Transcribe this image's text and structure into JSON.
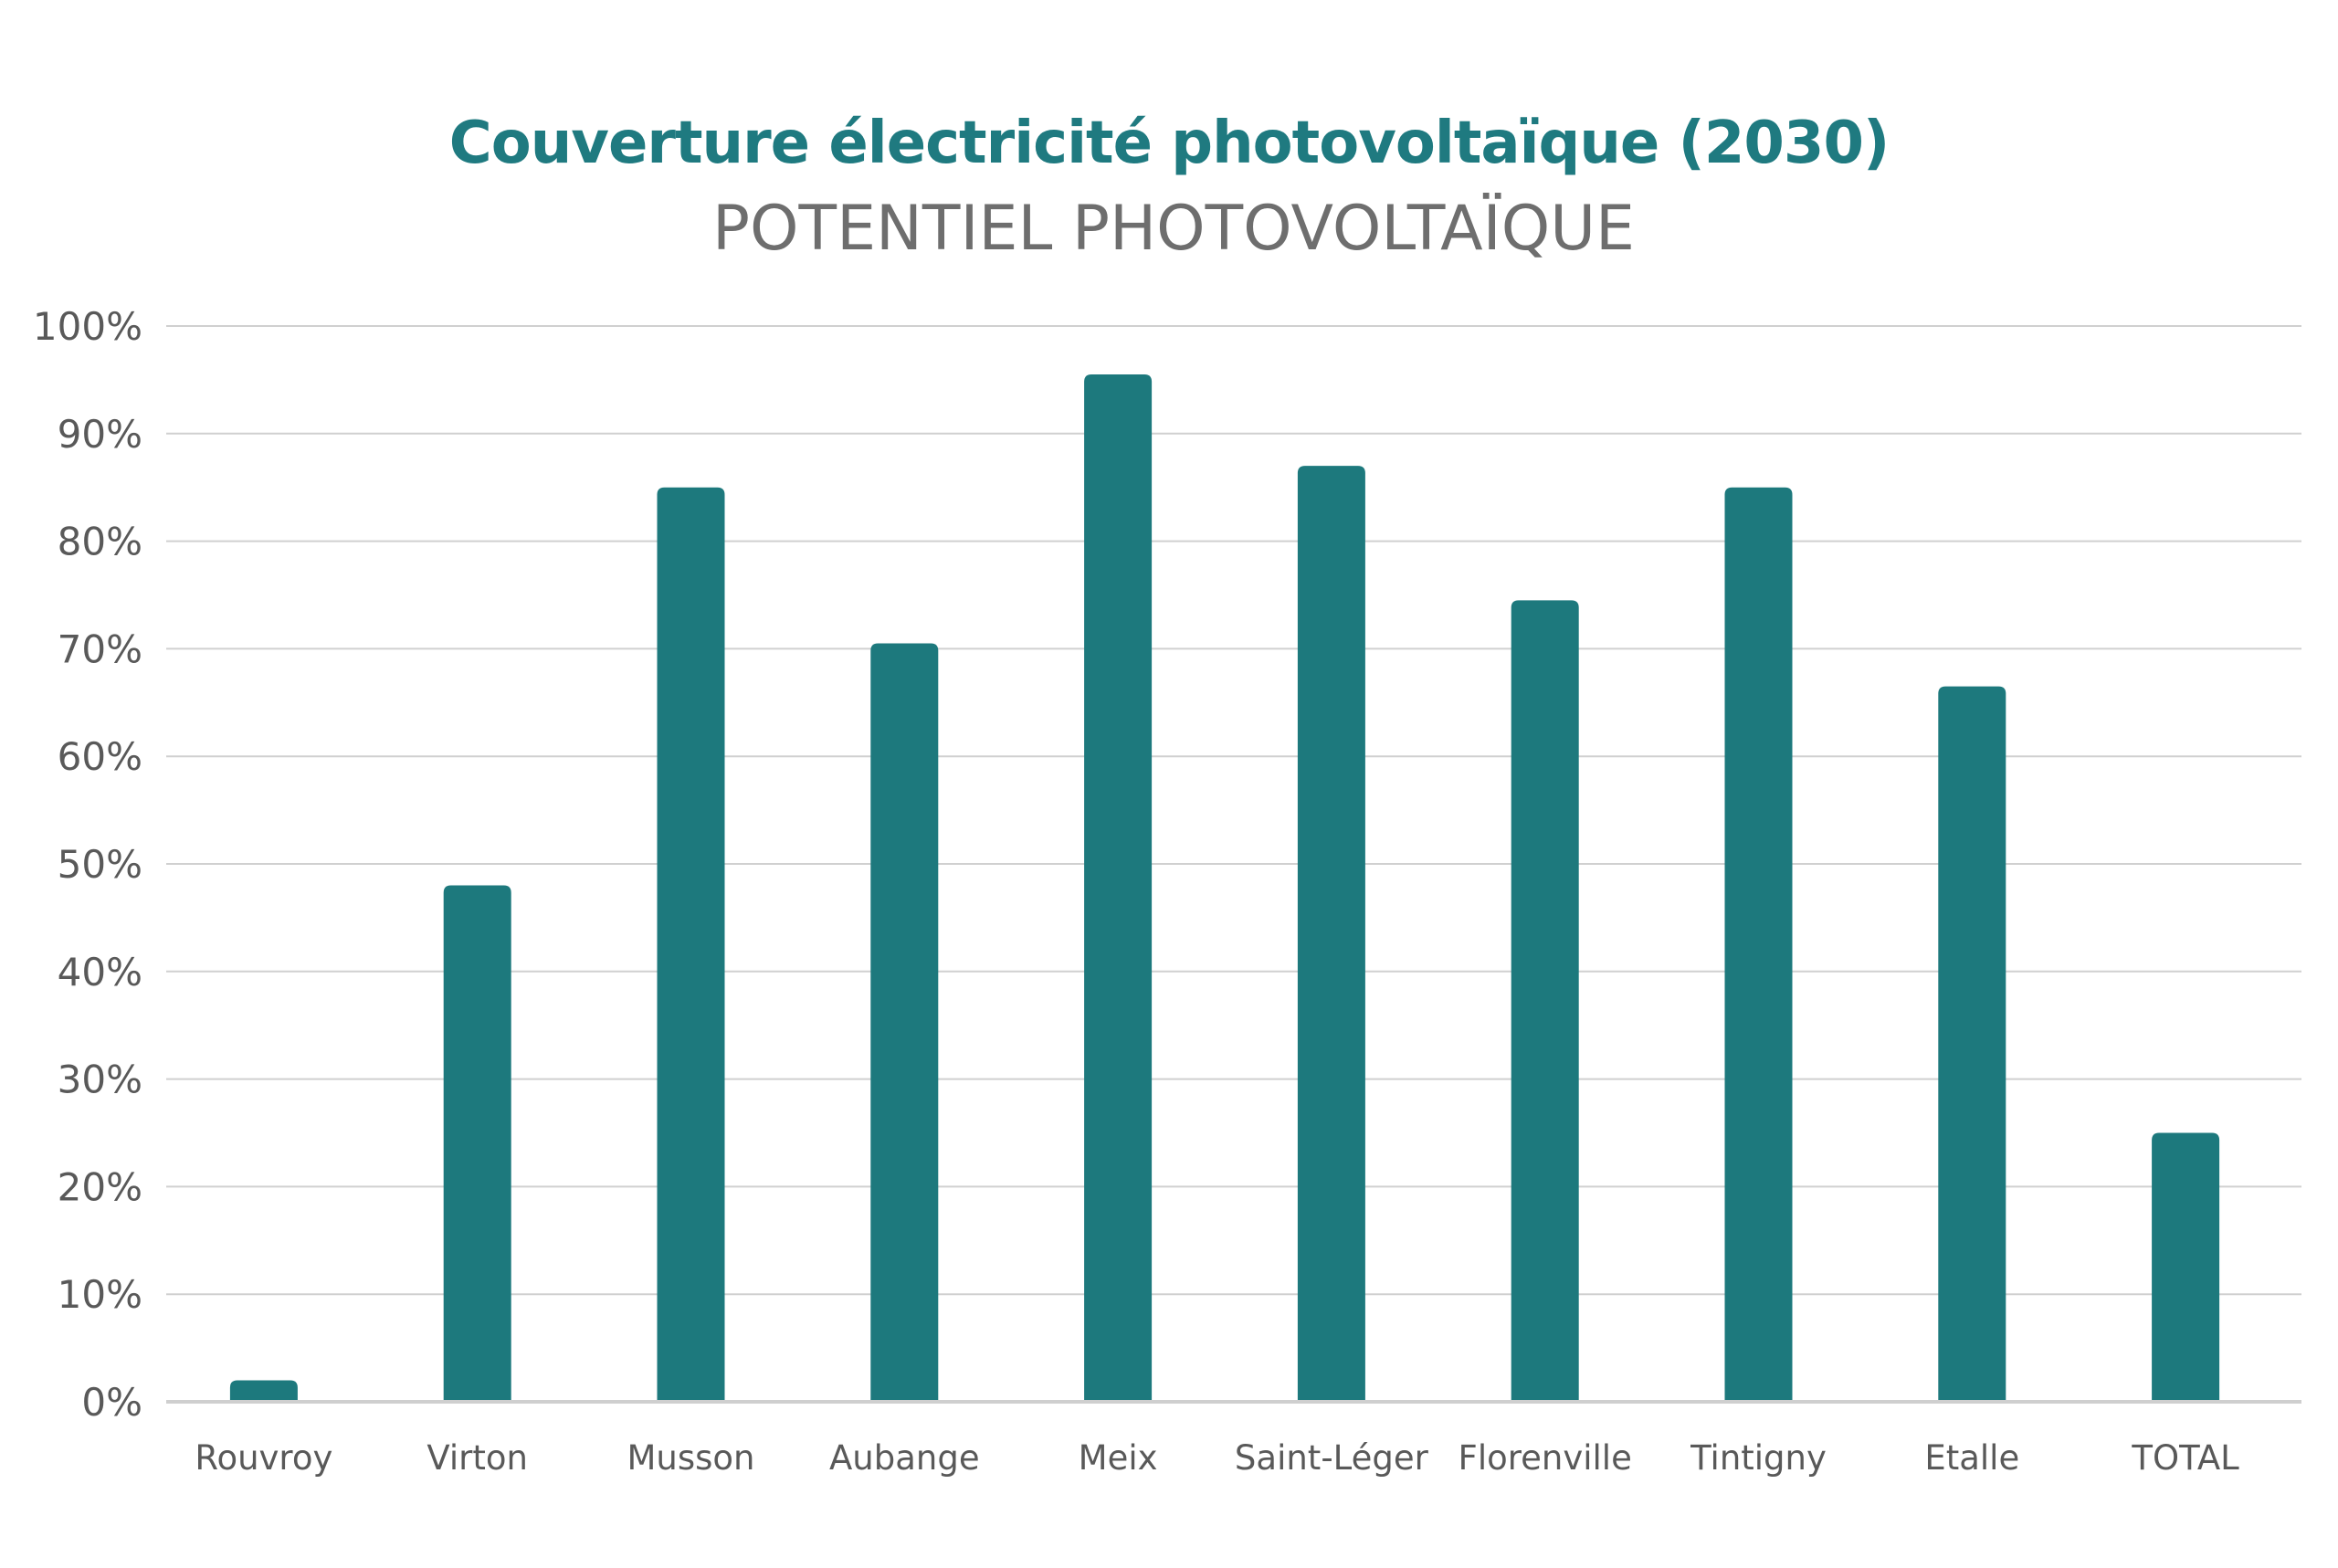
{
  "colors": {
    "bar": "#1d797d",
    "title": "#1f7a80",
    "subtitle": "#6e6e6e",
    "grid": "#d0d0d0",
    "axis": "#cfcfcf",
    "tick_text": "#595959"
  },
  "chart_data": {
    "type": "bar",
    "title": "Couverture électricité photovoltaïque (2030)",
    "subtitle": "POTENTIEL PHOTOVOLTAÏQUE",
    "xlabel": "",
    "ylabel": "",
    "categories": [
      "Rouvroy",
      "Virton",
      "Musson",
      "Aubange",
      "Meix",
      "Saint-Léger",
      "Florenville",
      "Tintigny",
      "Etalle",
      "TOTAL"
    ],
    "values": [
      2,
      48,
      85,
      70.5,
      95.5,
      87,
      74.5,
      85,
      66.5,
      25
    ],
    "ylim": [
      0,
      100
    ],
    "yticks": [
      0,
      10,
      20,
      30,
      40,
      50,
      60,
      70,
      80,
      90,
      100
    ],
    "ytick_labels": [
      "0%",
      "10%",
      "20%",
      "30%",
      "40%",
      "50%",
      "60%",
      "70%",
      "80%",
      "90%",
      "100%"
    ],
    "grid": true,
    "legend": "none"
  }
}
